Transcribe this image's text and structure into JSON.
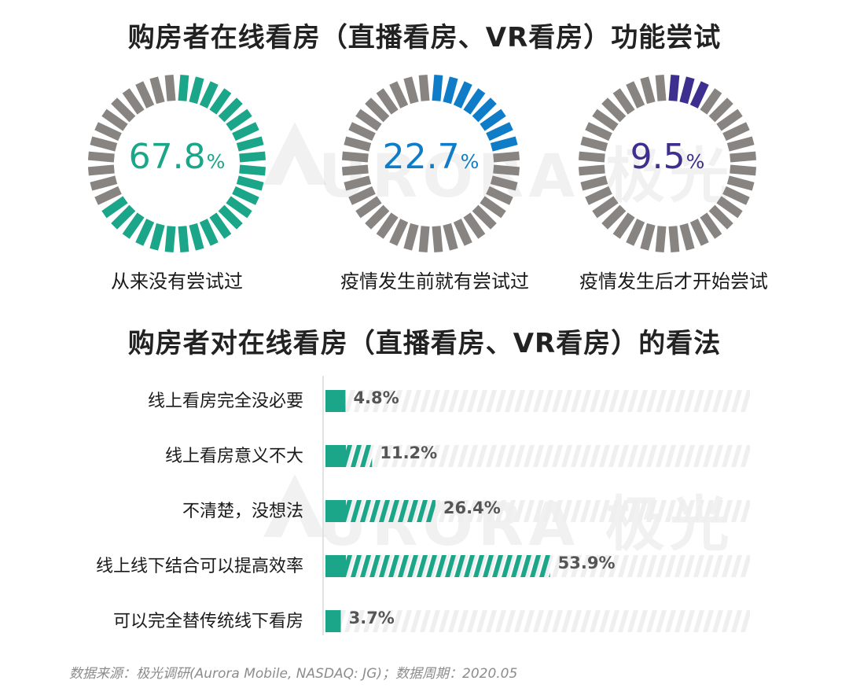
{
  "titles": {
    "top": "购房者在线看房（直播看房、VR看房）功能尝试",
    "bottom": "购房者对在线看房（直播看房、VR看房）的看法"
  },
  "watermark": {
    "text": "URORA 极光"
  },
  "colors": {
    "teal": "#1ba68a",
    "blue": "#0f7cc8",
    "purple": "#3d2f8f",
    "gray_tick": "#878481",
    "stripe_bg": "#ececec",
    "source_text": "#8c8c8c"
  },
  "donuts": [
    {
      "value": "67.8",
      "unit": "%",
      "label": "从来没有尝试过",
      "color": "#1ba68a",
      "fraction": 0.678
    },
    {
      "value": "22.7",
      "unit": "%",
      "label": "疫情发生前就有尝试过",
      "color": "#0f7cc8",
      "fraction": 0.227
    },
    {
      "value": "9.5",
      "unit": "%",
      "label": "疫情发生后才开始尝试",
      "color": "#3d2f8f",
      "fraction": 0.095
    }
  ],
  "chart_data": [
    {
      "type": "pie",
      "title": "购房者在线看房（直播看房、VR看房）功能尝试",
      "categories": [
        "从来没有尝试过",
        "疫情发生前就有尝试过",
        "疫情发生后才开始尝试"
      ],
      "values": [
        67.8,
        22.7,
        9.5
      ],
      "unit": "%"
    },
    {
      "type": "bar",
      "orientation": "horizontal",
      "title": "购房者对在线看房（直播看房、VR看房）的看法",
      "categories": [
        "线上看房完全没必要",
        "线上看房意义不大",
        "不清楚，没想法",
        "线上线下结合可以提高效率",
        "可以完全替传统线下看房"
      ],
      "values": [
        4.8,
        11.2,
        26.4,
        53.9,
        3.7
      ],
      "value_labels": [
        "4.8%",
        "11.2%",
        "26.4%",
        "53.9%",
        "3.7%"
      ],
      "unit": "%",
      "xlim": [
        0,
        100
      ],
      "grid": false
    }
  ],
  "source": "数据来源：极光调研(Aurora Mobile, NASDAQ: JG)；数据周期：2020.05"
}
